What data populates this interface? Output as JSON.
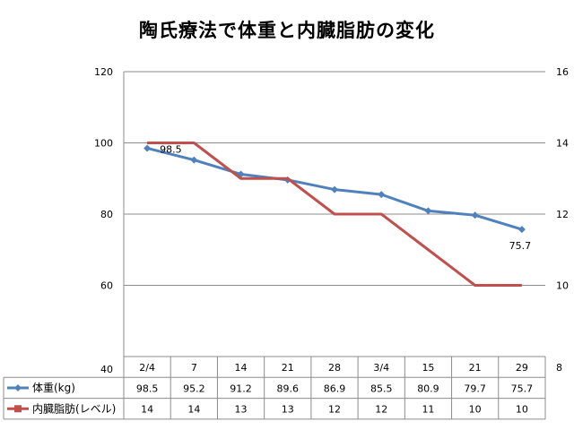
{
  "title": "陶氏療法で体重と内臓脂肪の変化",
  "chart_data": {
    "type": "line",
    "title": "陶氏療法で体重と内臓脂肪の変化",
    "categories": [
      "2/4",
      "7",
      "14",
      "21",
      "28",
      "3/4",
      "15",
      "21",
      "29"
    ],
    "series": [
      {
        "name": "体重(kg)",
        "axis": "left",
        "color": "#4F81BD",
        "marker": "diamond",
        "values": [
          98.5,
          95.2,
          91.2,
          89.6,
          86.9,
          85.5,
          80.9,
          79.7,
          75.7
        ]
      },
      {
        "name": "内臓脂肪(レベル)",
        "axis": "right",
        "color": "#C0504D",
        "marker": "square",
        "values": [
          14,
          14,
          13,
          13,
          12,
          12,
          11,
          10,
          10
        ]
      }
    ],
    "y_left": {
      "min": 40,
      "max": 120,
      "ticks": [
        40,
        60,
        80,
        100,
        120
      ]
    },
    "y_right": {
      "min": 8,
      "max": 16,
      "ticks": [
        8,
        10,
        12,
        14,
        16
      ]
    },
    "data_labels": [
      {
        "series": 0,
        "index": 0,
        "text": "98.5"
      },
      {
        "series": 0,
        "index": 8,
        "text": "75.7"
      }
    ],
    "grid": true,
    "legend": "data-table"
  }
}
